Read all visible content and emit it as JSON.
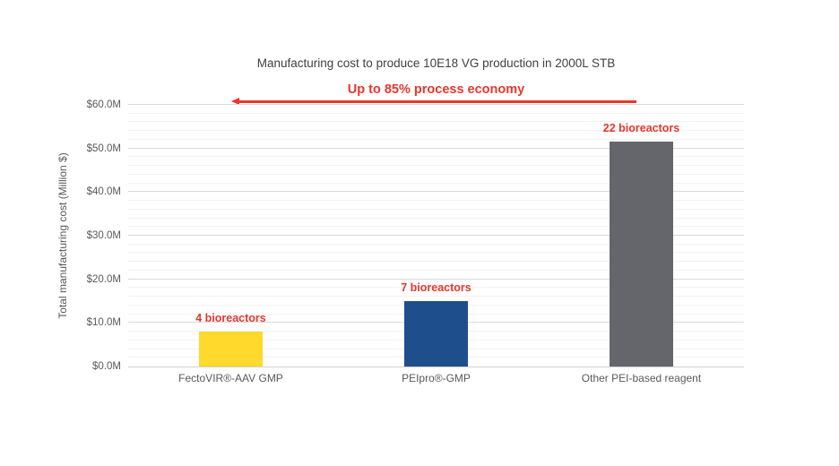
{
  "chart_data": {
    "type": "bar",
    "title": "Manufacturing cost to produce 10E18 VG production in 2000L STB",
    "ylabel": "Total manufacturing cost (Million $)",
    "xlabel": "",
    "ylim": [
      0,
      60
    ],
    "y_major_step": 10,
    "y_minor_step": 2,
    "ytick_labels": [
      "$0.0M",
      "$10.0M",
      "$20.0M",
      "$30.0M",
      "$40.0M",
      "$50.0M",
      "$60.0M"
    ],
    "grid": "horizontal major and minor gridlines, no border",
    "legend": "none",
    "categories": [
      "FectoVIR®-AAV GMP",
      "PEIpro®-GMP",
      "Other PEI-based reagent"
    ],
    "values": [
      8,
      15,
      51.5
    ],
    "bar_colors": [
      "#ffd92b",
      "#1f4e8c",
      "#64666b"
    ],
    "bar_annotations": [
      "4 bioreactors",
      "7 bioreactors",
      "22 bioreactors"
    ],
    "annotation_arrow": {
      "label": "Up to 85% process economy",
      "direction": "left",
      "color": "#e8362d"
    }
  },
  "colors": {
    "background": "#ffffff",
    "title_text": "#404040",
    "axis_text": "#595959",
    "accent_red": "#e8362d",
    "major_grid": "#d9d9d9",
    "minor_grid": "#f2f2f2",
    "axis_line": "#d1d1d1"
  }
}
